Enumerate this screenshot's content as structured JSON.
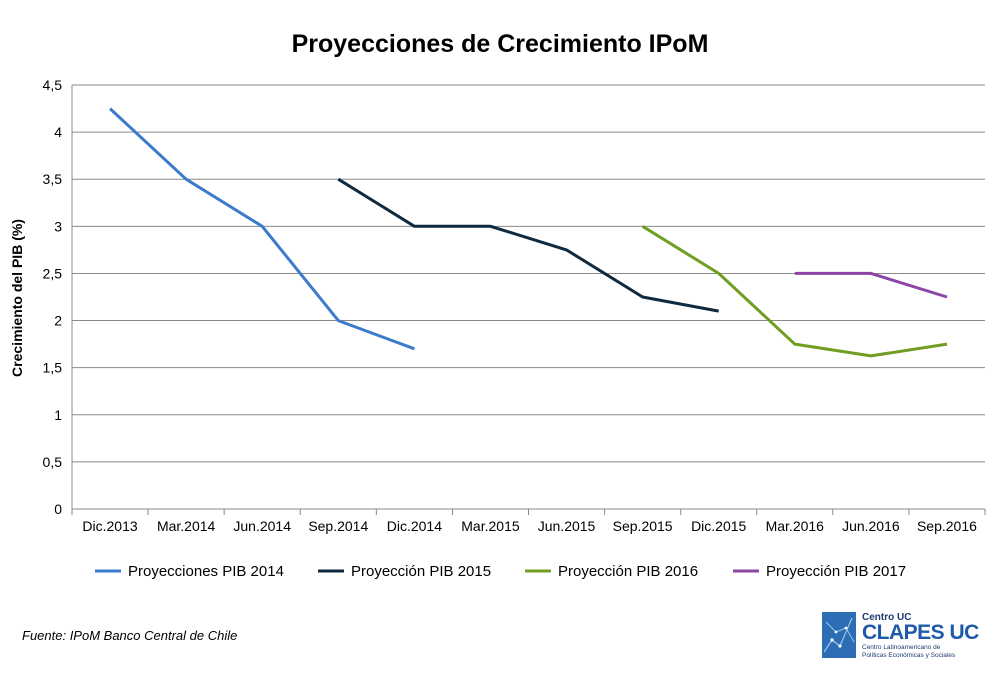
{
  "chart_data": {
    "type": "line",
    "title": "Proyecciones de Crecimiento IPoM",
    "xlabel": "",
    "ylabel": "Crecimiento del PIB (%)",
    "ylim": [
      0,
      4.5
    ],
    "yticks": [
      "0",
      "0,5",
      "1",
      "1,5",
      "2",
      "2,5",
      "3",
      "3,5",
      "4",
      "4,5"
    ],
    "ytick_values": [
      0,
      0.5,
      1,
      1.5,
      2,
      2.5,
      3,
      3.5,
      4,
      4.5
    ],
    "categories": [
      "Dic.2013",
      "Mar.2014",
      "Jun.2014",
      "Sep.2014",
      "Dic.2014",
      "Mar.2015",
      "Jun.2015",
      "Sep.2015",
      "Dic.2015",
      "Mar.2016",
      "Jun.2016",
      "Sep.2016"
    ],
    "grid": true,
    "legend_position": "bottom",
    "series": [
      {
        "name": "Proyecciones PIB 2014",
        "color": "#3a7bcc",
        "values": [
          4.25,
          3.5,
          3.0,
          2.0,
          1.7,
          null,
          null,
          null,
          null,
          null,
          null,
          null
        ]
      },
      {
        "name": "Proyección PIB 2015",
        "color": "#0f2a3f",
        "values": [
          null,
          null,
          null,
          3.5,
          3.0,
          3.0,
          2.75,
          2.25,
          2.1,
          null,
          null,
          null
        ]
      },
      {
        "name": "Proyección PIB 2016",
        "color": "#6f9e22",
        "values": [
          null,
          null,
          null,
          null,
          null,
          null,
          null,
          3.0,
          2.5,
          1.75,
          1.625,
          1.75
        ]
      },
      {
        "name": "Proyección PIB 2017",
        "color": "#8b46a5",
        "values": [
          null,
          null,
          null,
          null,
          null,
          null,
          null,
          null,
          null,
          2.5,
          2.5,
          2.25
        ]
      }
    ]
  },
  "source_note": "Fuente: IPoM  Banco Central  de Chile",
  "logo": {
    "kicker": "Centro UC",
    "main": "CLAPES UC",
    "sub_line1": "Centro Latinoamericano de",
    "sub_line2": "Políticas Económicas y Sociales"
  }
}
